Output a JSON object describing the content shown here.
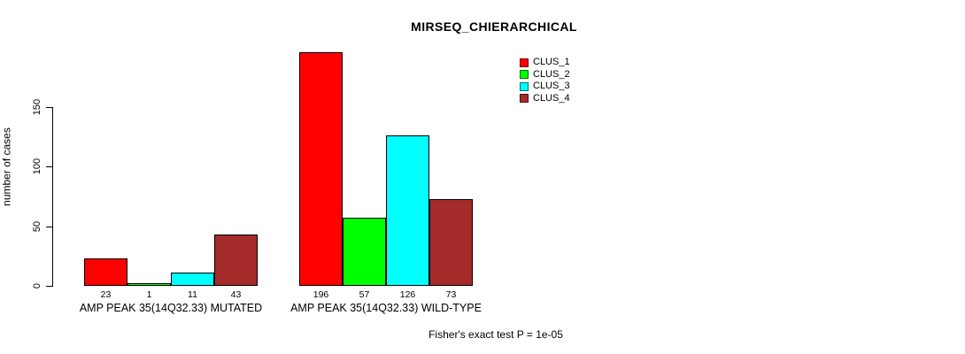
{
  "chart_data": {
    "type": "bar",
    "title": "MIRSEQ_CHIERARCHICAL",
    "ylabel": "number of cases",
    "xlabel": "",
    "yticks": [
      0,
      50,
      100,
      150
    ],
    "ylim": [
      0,
      205
    ],
    "grid": false,
    "legend_position": "top-right",
    "categories": [
      "AMP PEAK 35(14Q32.33) MUTATED",
      "AMP PEAK 35(14Q32.33) WILD-TYPE"
    ],
    "series": [
      {
        "name": "CLUS_1",
        "color": "#FF0000",
        "values": [
          23,
          196
        ]
      },
      {
        "name": "CLUS_2",
        "color": "#00FF00",
        "values": [
          1,
          57
        ]
      },
      {
        "name": "CLUS_3",
        "color": "#00FFFF",
        "values": [
          11,
          126
        ]
      },
      {
        "name": "CLUS_4",
        "color": "#A52A2A",
        "values": [
          43,
          73
        ]
      }
    ],
    "bar_value_labels": [
      [
        23,
        1,
        11,
        43
      ],
      [
        196,
        57,
        126,
        73
      ]
    ],
    "annotation": "Fisher's exact test P = 1e-05"
  }
}
